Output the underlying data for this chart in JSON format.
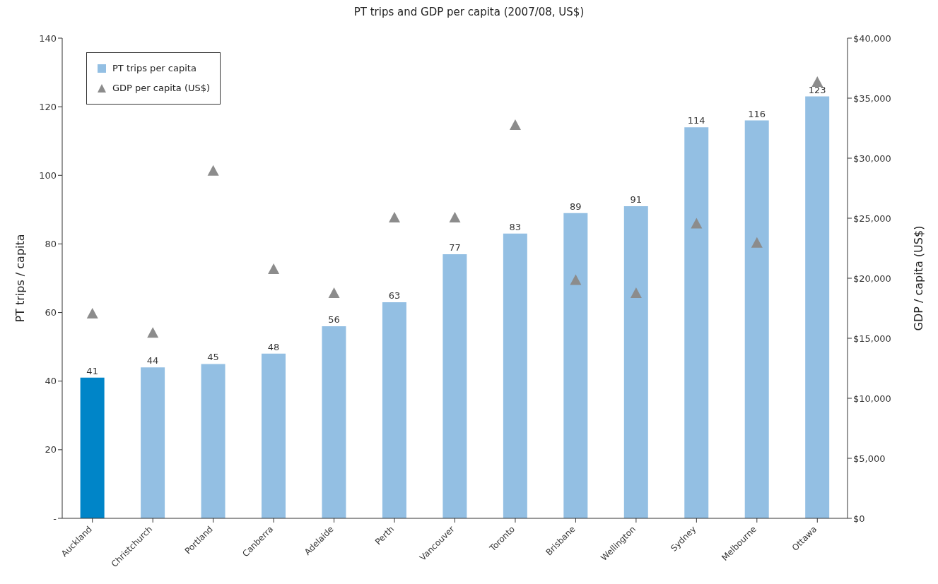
{
  "chart_data": {
    "type": "bar",
    "title": "PT trips and GDP per capita (2007/08, US$)",
    "ylabel": "PT trips / capita",
    "y2label": "GDP / capita (US$)",
    "categories": [
      "Auckland",
      "Christchurch",
      "Portland",
      "Canberra",
      "Adelaide",
      "Perth",
      "Vancouver",
      "Toronto",
      "Brisbane",
      "Wellington",
      "Sydney",
      "Melbourne",
      "Ottawa"
    ],
    "series": [
      {
        "name": "PT trips per capita",
        "color": "#93bfe3",
        "colors": [
          "#0085c8",
          "#93bfe3",
          "#93bfe3",
          "#93bfe3",
          "#93bfe3",
          "#93bfe3",
          "#93bfe3",
          "#93bfe3",
          "#93bfe3",
          "#93bfe3",
          "#93bfe3",
          "#93bfe3",
          "#93bfe3"
        ],
        "values": [
          41,
          44,
          45,
          48,
          56,
          63,
          77,
          83,
          89,
          91,
          114,
          116,
          123
        ],
        "data_labels": true
      },
      {
        "name": "GDP per capita (US$)",
        "type": "scatter",
        "axis": "y2",
        "marker": "triangle",
        "color": "#8c8c8c",
        "values": [
          17000,
          15400,
          28900,
          20700,
          18700,
          25000,
          25000,
          32700,
          19800,
          18700,
          24500,
          22900,
          36300
        ]
      }
    ],
    "ylim": [
      0,
      140
    ],
    "yticks": [
      {
        "value": 0,
        "label": "-"
      },
      20,
      40,
      60,
      80,
      100,
      120,
      140
    ],
    "y2lim": [
      0,
      40000
    ],
    "y2ticks": [
      {
        "value": 0,
        "label": "$0"
      },
      {
        "value": 5000,
        "label": "$5,000"
      },
      {
        "value": 10000,
        "label": "$10,000"
      },
      {
        "value": 15000,
        "label": "$15,000"
      },
      {
        "value": 20000,
        "label": "$20,000"
      },
      {
        "value": 25000,
        "label": "$25,000"
      },
      {
        "value": 30000,
        "label": "$30,000"
      },
      {
        "value": 35000,
        "label": "$35,000"
      },
      {
        "value": 40000,
        "label": "$40,000"
      }
    ],
    "grid": false,
    "legend": "top left"
  }
}
